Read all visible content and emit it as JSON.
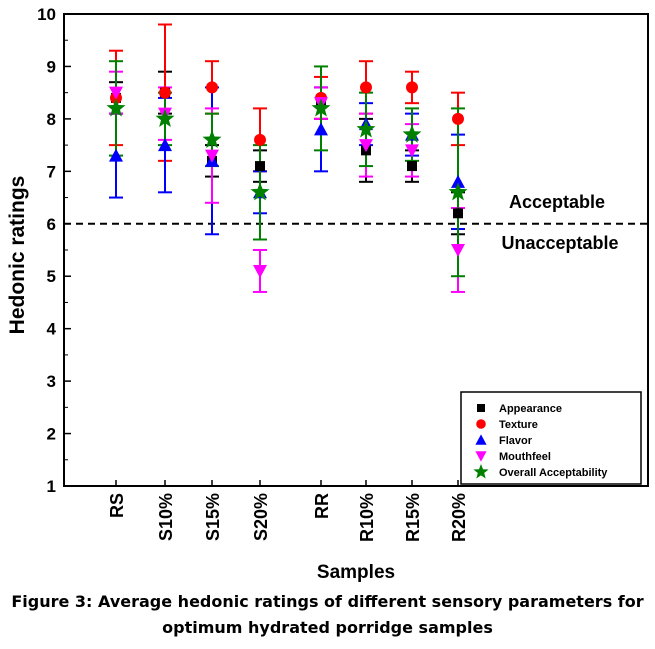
{
  "caption": {
    "line1": "Figure 3: Average hedonic ratings of different sensory parameters for",
    "line2": "optimum hydrated porridge samples"
  },
  "chart_data": {
    "type": "scatter",
    "title": "",
    "xlabel": "Samples",
    "ylabel": "Hedonic ratings",
    "ylim": [
      1,
      10
    ],
    "yticks": [
      "1",
      "2",
      "3",
      "4",
      "5",
      "6",
      "7",
      "8",
      "9",
      "10"
    ],
    "categories": [
      "RS",
      "S10%",
      "S15%",
      "S20%",
      "RR",
      "R10%",
      "R15%",
      "R20%"
    ],
    "error_bars": true,
    "legend_position": "bottom-right",
    "reference_line": {
      "y": 6,
      "style": "dashed",
      "label_above": "Acceptable",
      "label_below": "Unacceptable"
    },
    "series": [
      {
        "name": "Appearance",
        "marker": "square",
        "color": "#000000",
        "values": [
          8.4,
          8.5,
          7.2,
          7.1,
          8.3,
          7.4,
          7.1,
          6.2
        ],
        "err": [
          0.3,
          0.4,
          0.3,
          0.3,
          0.3,
          0.6,
          0.3,
          0.4
        ]
      },
      {
        "name": "Texture",
        "marker": "circle",
        "color": "#ff0000",
        "values": [
          8.4,
          8.5,
          8.6,
          7.6,
          8.4,
          8.6,
          8.6,
          8.0
        ],
        "err": [
          0.9,
          1.3,
          0.5,
          0.6,
          0.4,
          0.5,
          0.3,
          0.5
        ]
      },
      {
        "name": "Flavor",
        "marker": "triangle-up",
        "color": "#0000ff",
        "values": [
          7.3,
          7.5,
          7.2,
          6.6,
          7.8,
          7.9,
          7.7,
          6.8
        ],
        "err": [
          0.8,
          0.9,
          1.4,
          0.4,
          0.8,
          0.4,
          0.4,
          0.9
        ]
      },
      {
        "name": "Mouthfeel",
        "marker": "triangle-down",
        "color": "#ff00ff",
        "values": [
          8.5,
          8.1,
          7.3,
          5.1,
          8.3,
          7.5,
          7.4,
          5.5
        ],
        "err": [
          0.4,
          0.5,
          0.9,
          0.4,
          0.3,
          0.6,
          0.5,
          0.8
        ]
      },
      {
        "name": "Overall Acceptability",
        "marker": "star",
        "color": "#008000",
        "values": [
          8.2,
          8.0,
          7.6,
          6.6,
          8.2,
          7.8,
          7.7,
          6.6
        ],
        "err": [
          0.9,
          0.5,
          0.5,
          0.9,
          0.8,
          0.7,
          0.5,
          1.6
        ]
      }
    ]
  }
}
